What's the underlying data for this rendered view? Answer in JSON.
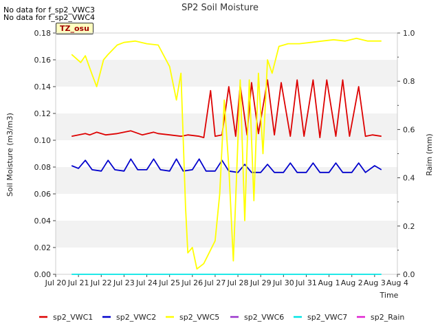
{
  "notices": [
    "No data for f_sp2_VWC3",
    "No data for f_sp2_VWC4"
  ],
  "badge": "TZ_osu",
  "chart_data": {
    "type": "line",
    "title": "SP2 Soil Moisture",
    "xlabel": "Time",
    "ylabel": "Soil Moisture (m3/m3)",
    "y2label": "Raim (mm)",
    "ylim": [
      0,
      0.18
    ],
    "y2lim": [
      0,
      1.0
    ],
    "yticks": [
      "0.00",
      "0.02",
      "0.04",
      "0.06",
      "0.08",
      "0.10",
      "0.12",
      "0.14",
      "0.16",
      "0.18"
    ],
    "y2ticks": [
      "0.0",
      "0.2",
      "0.4",
      "0.6",
      "0.8",
      "1.0"
    ],
    "xlim": [
      0,
      15
    ],
    "xticks": [
      "Jul 20",
      "Jul 21",
      "Jul 22",
      "Jul 23",
      "Jul 24",
      "Jul 25",
      "Jul 26",
      "Jul 27",
      "Jul 28",
      "Jul 29",
      "Jul 30",
      "Jul 31",
      "Aug 1",
      "Aug 2",
      "Aug 3",
      "Aug 4"
    ],
    "grid": "horizontal bands",
    "legend_position": "bottom",
    "colors": {
      "sp2_VWC1": "#dd0000",
      "sp2_VWC2": "#0000cc",
      "sp2_VWC5": "#ffff00",
      "sp2_VWC6": "#9933cc",
      "sp2_VWC7": "#00e5e5",
      "sp2_Rain": "#e020d0"
    },
    "series": [
      {
        "name": "sp2_VWC1",
        "x": [
          0.7,
          1.3,
          1.5,
          1.8,
          2.2,
          2.7,
          3.0,
          3.3,
          3.8,
          4.3,
          4.5,
          5.0,
          5.5,
          5.8,
          6.3,
          6.5,
          6.8,
          7.0,
          7.3,
          7.6,
          7.9,
          8.1,
          8.4,
          8.6,
          8.9,
          9.3,
          9.6,
          9.9,
          10.3,
          10.6,
          10.9,
          11.3,
          11.6,
          11.9,
          12.3,
          12.6,
          12.9,
          13.3,
          13.6,
          13.9,
          14.3
        ],
        "y": [
          0.103,
          0.105,
          0.104,
          0.106,
          0.104,
          0.105,
          0.106,
          0.107,
          0.104,
          0.106,
          0.105,
          0.104,
          0.103,
          0.104,
          0.103,
          0.102,
          0.137,
          0.103,
          0.104,
          0.14,
          0.103,
          0.141,
          0.104,
          0.143,
          0.105,
          0.145,
          0.104,
          0.143,
          0.103,
          0.145,
          0.103,
          0.145,
          0.102,
          0.145,
          0.103,
          0.145,
          0.103,
          0.14,
          0.103,
          0.104,
          0.103
        ]
      },
      {
        "name": "sp2_VWC2",
        "x": [
          0.7,
          1.0,
          1.3,
          1.6,
          2.0,
          2.3,
          2.6,
          3.0,
          3.3,
          3.6,
          4.0,
          4.3,
          4.6,
          5.0,
          5.3,
          5.6,
          6.0,
          6.3,
          6.6,
          7.0,
          7.3,
          7.6,
          8.0,
          8.3,
          8.6,
          9.0,
          9.3,
          9.6,
          10.0,
          10.3,
          10.6,
          11.0,
          11.3,
          11.6,
          12.0,
          12.3,
          12.6,
          13.0,
          13.3,
          13.6,
          14.0,
          14.3
        ],
        "y": [
          0.081,
          0.079,
          0.085,
          0.078,
          0.077,
          0.085,
          0.078,
          0.077,
          0.086,
          0.078,
          0.078,
          0.086,
          0.078,
          0.077,
          0.086,
          0.077,
          0.078,
          0.086,
          0.077,
          0.077,
          0.085,
          0.077,
          0.076,
          0.082,
          0.076,
          0.076,
          0.082,
          0.076,
          0.076,
          0.083,
          0.076,
          0.076,
          0.083,
          0.076,
          0.076,
          0.083,
          0.076,
          0.076,
          0.083,
          0.076,
          0.081,
          0.078
        ]
      },
      {
        "name": "sp2_VWC5",
        "x": [
          0.7,
          1.1,
          1.3,
          1.6,
          1.8,
          2.1,
          2.3,
          2.7,
          3.0,
          3.5,
          4.0,
          4.5,
          5.0,
          5.3,
          5.5,
          5.7,
          5.8,
          6.0,
          6.2,
          6.5,
          7.0,
          7.2,
          7.4,
          7.6,
          7.8,
          8.1,
          8.3,
          8.5,
          8.7,
          8.9,
          9.1,
          9.3,
          9.5,
          9.8,
          10.2,
          10.7,
          11.2,
          11.7,
          12.2,
          12.7,
          13.2,
          13.7,
          14.3
        ],
        "y": [
          0.164,
          0.158,
          0.163,
          0.149,
          0.14,
          0.16,
          0.164,
          0.171,
          0.173,
          0.174,
          0.172,
          0.171,
          0.155,
          0.13,
          0.15,
          0.05,
          0.016,
          0.02,
          0.004,
          0.008,
          0.025,
          0.06,
          0.13,
          0.08,
          0.01,
          0.145,
          0.04,
          0.145,
          0.055,
          0.15,
          0.09,
          0.16,
          0.15,
          0.17,
          0.172,
          0.172,
          0.173,
          0.174,
          0.175,
          0.174,
          0.176,
          0.174,
          0.174
        ]
      },
      {
        "name": "sp2_VWC6",
        "x": [],
        "y": []
      },
      {
        "name": "sp2_VWC7",
        "x": [
          0.7,
          14.3
        ],
        "y": [
          0,
          0
        ]
      },
      {
        "name": "sp2_Rain",
        "x": [],
        "y": []
      }
    ]
  }
}
